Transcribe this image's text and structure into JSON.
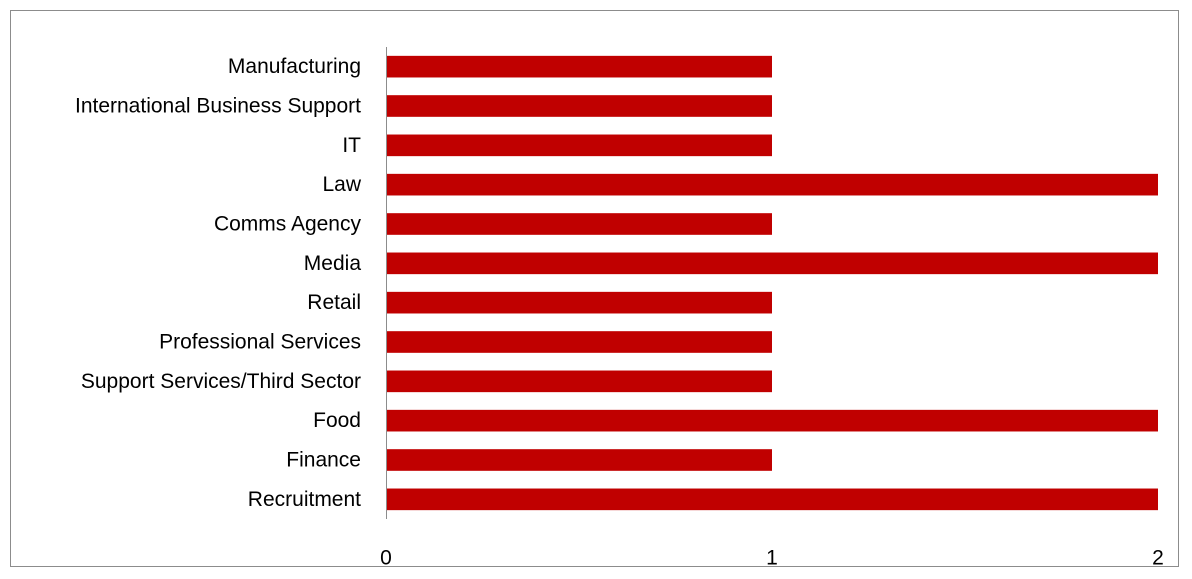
{
  "chart_data": {
    "type": "bar",
    "orientation": "horizontal",
    "categories": [
      "Manufacturing",
      "International Business Support",
      "IT",
      "Law",
      "Comms Agency",
      "Media",
      "Retail",
      "Professional Services",
      "Support Services/Third Sector",
      "Food",
      "Finance",
      "Recruitment"
    ],
    "values": [
      1,
      1,
      1,
      2,
      1,
      2,
      1,
      1,
      1,
      2,
      1,
      2
    ],
    "xlim": [
      0,
      2
    ],
    "x_ticks": [
      "0",
      "1",
      "2"
    ],
    "title": "",
    "xlabel": "",
    "ylabel": "",
    "bar_color": "#C00000",
    "grid": false,
    "legend": "none"
  }
}
